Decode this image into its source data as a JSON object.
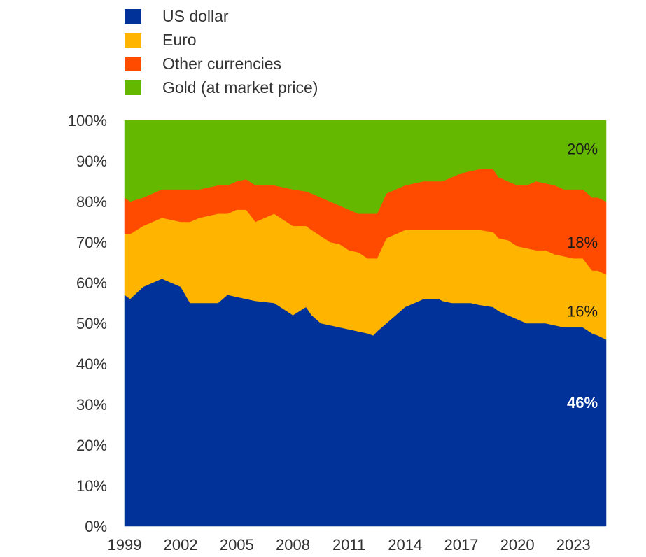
{
  "chart_data": {
    "type": "area",
    "stacked": true,
    "percent": true,
    "title": "",
    "xlabel": "",
    "ylabel": "",
    "ylim": [
      0,
      100
    ],
    "xlim": [
      1999,
      2024.75
    ],
    "grid": false,
    "legend_position": "top-left",
    "y_ticks": [
      "0%",
      "10%",
      "20%",
      "30%",
      "40%",
      "50%",
      "60%",
      "70%",
      "80%",
      "90%",
      "100%"
    ],
    "x_ticks": [
      "1999",
      "2002",
      "2005",
      "2008",
      "2011",
      "2014",
      "2017",
      "2020",
      "2023"
    ],
    "x": [
      1999,
      1999.3,
      2000,
      2001,
      2002,
      2002.5,
      2003,
      2004,
      2004.5,
      2005,
      2005.5,
      2006,
      2007,
      2008,
      2008.7,
      2009,
      2009.5,
      2010,
      2010.5,
      2011,
      2011.5,
      2012,
      2012.3,
      2012.5,
      2013,
      2014,
      2015,
      2015.8,
      2016,
      2016.5,
      2017,
      2017.5,
      2018,
      2018.7,
      2019,
      2019.5,
      2020,
      2020.5,
      2021,
      2021.5,
      2022,
      2022.5,
      2023,
      2023.5,
      2024,
      2024.3,
      2024.75
    ],
    "series": [
      {
        "name": "US dollar",
        "color": "#003299",
        "values": [
          57,
          56,
          59,
          61,
          59,
          55,
          55,
          55,
          57,
          56.5,
          56,
          55.5,
          55,
          52,
          54,
          52,
          50,
          49.5,
          49,
          48.5,
          48,
          47.5,
          47,
          48,
          50,
          54,
          56,
          56,
          55.5,
          55,
          55,
          55,
          54.5,
          54,
          53,
          52,
          51,
          50,
          50,
          50,
          49.5,
          49,
          49,
          49,
          47.5,
          47,
          46
        ]
      },
      {
        "name": "Euro",
        "color": "#FFB400",
        "values": [
          15,
          16,
          15,
          15,
          16,
          20,
          21,
          22,
          20,
          21.5,
          22,
          19.5,
          22,
          22,
          20,
          21,
          21.5,
          20.5,
          20.5,
          19.5,
          19.5,
          18.5,
          19,
          18,
          21,
          19,
          17,
          17,
          17.5,
          18,
          18,
          18,
          18.5,
          18.5,
          18,
          18.5,
          18,
          18.5,
          18,
          18,
          17.5,
          17.5,
          17,
          17,
          15.5,
          16,
          16
        ]
      },
      {
        "name": "Other currencies",
        "color": "#FF4B00",
        "values": [
          9,
          8,
          7,
          7,
          8,
          8,
          7,
          7,
          7,
          7,
          7.5,
          9,
          7,
          9,
          8.5,
          9,
          9.5,
          10,
          9.5,
          10,
          9.5,
          11,
          11,
          11,
          11,
          11,
          12,
          12,
          12,
          13,
          14,
          14.5,
          15,
          15.5,
          15,
          14.5,
          15,
          15.5,
          17,
          16.5,
          17,
          16.5,
          17,
          17,
          18,
          18,
          18
        ]
      },
      {
        "name": "Gold (at market price)",
        "color": "#65B800",
        "values": [
          19,
          20,
          19,
          17,
          17,
          17,
          17,
          16,
          16,
          15,
          14.5,
          16,
          16,
          17,
          17.5,
          18,
          19,
          20,
          21,
          22,
          23,
          23,
          23,
          23,
          18,
          16,
          15,
          15,
          15,
          14,
          13,
          12.5,
          12,
          12,
          14,
          15,
          16,
          16,
          15,
          15.5,
          16,
          17,
          17,
          17,
          19,
          19,
          20
        ]
      }
    ],
    "annotations": [
      {
        "text": "20%",
        "series": "Gold (at market price)",
        "color": "#1a1a1a",
        "bold": false
      },
      {
        "text": "18%",
        "series": "Other currencies",
        "color": "#1a1a1a",
        "bold": false
      },
      {
        "text": "16%",
        "series": "Euro",
        "color": "#1a1a1a",
        "bold": false
      },
      {
        "text": "46%",
        "series": "US dollar",
        "color": "#ffffff",
        "bold": true
      }
    ]
  },
  "legend": [
    {
      "label": "US dollar",
      "color": "#003299"
    },
    {
      "label": "Euro",
      "color": "#FFB400"
    },
    {
      "label": "Other currencies",
      "color": "#FF4B00"
    },
    {
      "label": "Gold (at market price)",
      "color": "#65B800"
    }
  ]
}
